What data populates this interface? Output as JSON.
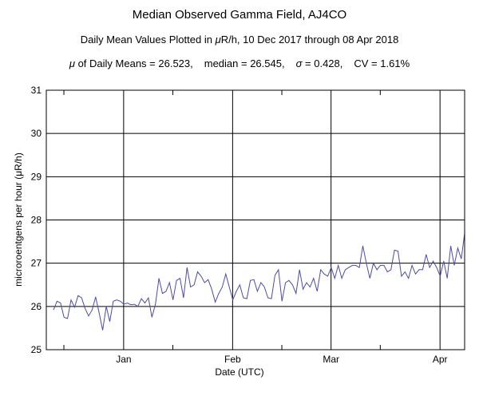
{
  "titles": {
    "title": "Median Observed Gamma Field, AJ4CO",
    "subtitle_prefix": "Daily Mean Values Plotted in ",
    "subtitle_mu": "μ",
    "subtitle_suffix": "R/h, 10 Dec 2017 through 08 Apr 2018",
    "stats_mu_label": "μ",
    "stats_mean": " of Daily Means = 26.523,",
    "stats_median": "median = 26.545,",
    "stats_sigma_label": "σ",
    "stats_sigma": " = 0.428,",
    "stats_cv": "CV = 1.61%"
  },
  "chart_data": {
    "type": "line",
    "xlabel": "Date (UTC)",
    "ylabel": "microroentgens per hour (μR/h)",
    "ylim": [
      25,
      31
    ],
    "yticks": [
      25,
      26,
      27,
      28,
      29,
      30,
      31
    ],
    "xrange": [
      "2017-12-10",
      "2018-04-08"
    ],
    "xticks": [
      {
        "label": "Jan",
        "date": "2018-01-01"
      },
      {
        "label": "Feb",
        "date": "2018-02-01"
      },
      {
        "label": "Mar",
        "date": "2018-03-01"
      },
      {
        "label": "Apr",
        "date": "2018-04-01"
      }
    ],
    "minor_ticks": [
      "2017-12-15",
      "2018-01-15",
      "2018-02-15",
      "2018-03-15"
    ],
    "grid": true,
    "line_color": "#4b4ba8",
    "series": [
      {
        "x_start": "2017-12-10",
        "values": [
          25.92,
          26.12,
          26.08,
          25.75,
          25.72,
          26.15,
          25.98,
          26.25,
          26.2,
          25.95,
          25.78,
          25.92,
          26.22,
          25.85,
          25.45,
          26.0,
          25.65,
          26.12,
          26.15,
          26.12,
          26.05,
          26.08,
          26.04,
          26.05,
          26.0,
          26.18,
          26.08,
          26.2,
          25.75,
          26.05,
          26.65,
          26.3,
          26.35,
          26.55,
          26.15,
          26.6,
          26.65,
          26.2,
          26.9,
          26.45,
          26.5,
          26.8,
          26.7,
          26.55,
          26.62,
          26.4,
          26.1,
          26.3,
          26.45,
          26.75,
          26.45,
          26.15,
          26.35,
          26.5,
          26.2,
          26.18,
          26.6,
          26.62,
          26.35,
          26.55,
          26.45,
          26.2,
          26.18,
          26.72,
          26.85,
          26.12,
          26.55,
          26.6,
          26.5,
          26.3,
          26.85,
          26.4,
          26.55,
          26.45,
          26.65,
          26.35,
          26.85,
          26.75,
          26.7,
          26.9,
          26.65,
          26.95,
          26.65,
          26.85,
          26.9,
          26.95,
          26.95,
          26.9,
          27.4,
          27.0,
          26.65,
          27.0,
          26.85,
          26.95,
          26.95,
          26.8,
          26.85,
          27.3,
          27.28,
          26.7,
          26.8,
          26.65,
          26.95,
          26.75,
          26.85,
          26.85,
          27.2,
          26.9,
          27.05,
          26.9,
          26.7,
          27.05,
          26.65,
          27.4,
          26.95,
          27.35,
          27.1,
          27.72
        ]
      }
    ]
  }
}
